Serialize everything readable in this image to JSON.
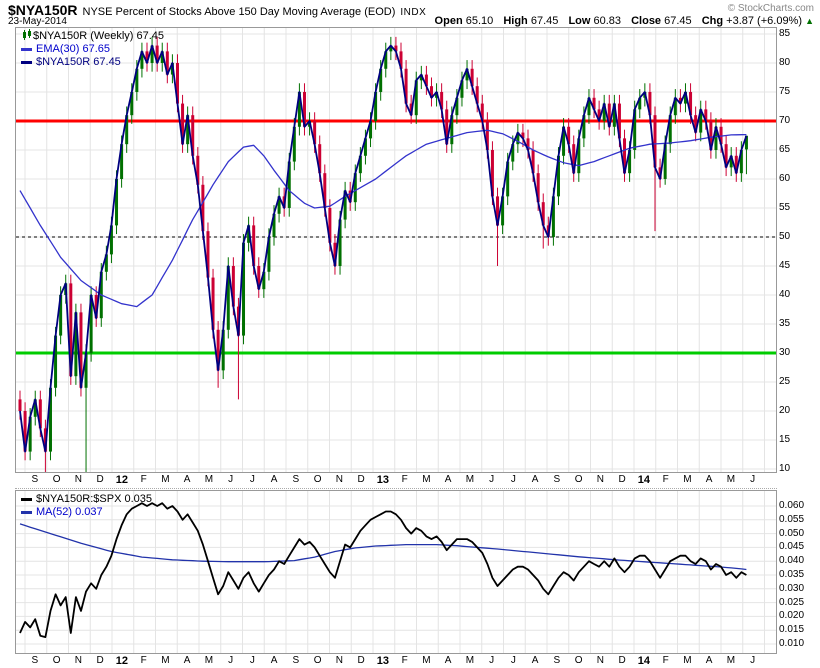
{
  "header": {
    "symbol": "$NYA150R",
    "description": "NYSE Percent of Stocks Above 150 Day Moving Average (EOD)",
    "exchange": "INDX",
    "copyright": "© StockCharts.com",
    "date": "23-May-2014",
    "quote_labels": {
      "open": "Open",
      "high": "High",
      "low": "Low",
      "close": "Close",
      "chg": "Chg"
    },
    "quote_values": {
      "open": "65.10",
      "high": "67.45",
      "low": "60.83",
      "close": "67.45",
      "chg": "+3.87 (+6.09%)",
      "arrow": "▲"
    }
  },
  "main_panel": {
    "legend": [
      {
        "text": "$NYA150R (Weekly) 67.45",
        "color": "#000000",
        "swatch": "candle-icon"
      },
      {
        "text": "EMA(30) 67.65",
        "color": "#0000cc",
        "swatch": "#3333cc"
      },
      {
        "text": "$NYA150R 67.45",
        "color": "#000080",
        "swatch": "#000080"
      }
    ]
  },
  "lower_panel": {
    "legend": [
      {
        "text": "$NYA150R:$SPX 0.035",
        "color": "#000000",
        "swatch": "#000000"
      },
      {
        "text": "MA(52) 0.037",
        "color": "#0000cc",
        "swatch": "#2233aa"
      }
    ]
  },
  "x_axis": {
    "labels": [
      "S",
      "O",
      "N",
      "D",
      "12",
      "F",
      "M",
      "A",
      "M",
      "J",
      "J",
      "A",
      "S",
      "O",
      "N",
      "D",
      "13",
      "F",
      "M",
      "A",
      "M",
      "J",
      "J",
      "A",
      "S",
      "O",
      "N",
      "D",
      "14",
      "F",
      "M",
      "A",
      "M",
      "J"
    ]
  },
  "colors": {
    "up": "#007000",
    "down": "#cc0033",
    "price_line": "#000080",
    "ema": "#3333cc",
    "overbought": "#ff0000",
    "oversold": "#00cc00",
    "midline": "#000000",
    "grid": "#e4e4e4",
    "ratio": "#000000",
    "ma52": "#2233aa"
  },
  "chart_data": [
    {
      "type": "candlestick",
      "title": "$NYA150R (Weekly)",
      "ylabel": "Percent of stocks above 150-day MA",
      "ylim": [
        9.48,
        86.03
      ],
      "y_ticks": [
        10,
        15,
        20,
        25,
        30,
        35,
        40,
        45,
        50,
        55,
        60,
        65,
        70,
        75,
        80,
        85
      ],
      "hlines": [
        {
          "value": 70,
          "style": "solid",
          "color": "#ff0000",
          "width": 3
        },
        {
          "value": 50,
          "style": "dashed",
          "color": "#000000",
          "width": 1
        },
        {
          "value": 30,
          "style": "solid",
          "color": "#00cc00",
          "width": 3
        }
      ],
      "weeks_start": "Sep-2011",
      "closes": [
        20,
        13,
        19,
        22,
        17,
        13,
        24,
        33,
        40,
        42,
        26,
        37,
        24,
        30,
        40,
        36,
        44,
        47,
        52,
        60,
        66,
        71,
        75,
        79,
        82,
        80,
        83,
        80,
        82,
        78,
        80,
        73,
        66,
        71,
        64,
        59,
        51,
        43,
        34,
        27,
        34,
        45,
        38,
        33,
        49,
        52,
        45,
        41,
        44,
        50,
        54,
        57,
        55,
        63,
        69,
        75,
        69,
        70,
        66,
        61,
        55,
        49,
        45,
        53,
        58,
        56,
        61,
        64,
        67,
        70,
        75,
        79,
        82,
        83,
        82,
        79,
        73,
        71,
        77,
        78,
        76,
        74,
        75,
        72,
        66,
        71,
        74,
        77,
        79,
        76,
        73,
        70,
        65,
        57,
        52,
        57,
        63,
        66,
        68,
        67,
        65,
        61,
        56,
        52,
        50,
        57,
        64,
        69,
        66,
        61,
        67,
        71,
        74,
        72,
        70,
        73,
        69,
        73,
        67,
        61,
        65,
        72,
        74,
        75,
        71,
        62,
        60,
        66,
        71,
        74,
        73,
        75,
        71,
        68,
        72,
        70,
        65,
        69,
        66,
        62,
        64,
        61,
        65,
        67.45
      ],
      "low_overrides": {
        "5": 9,
        "13": 8,
        "39": 24,
        "43": 22,
        "94": 45,
        "103": 48,
        "125": 51,
        "127": 59
      },
      "last_bar": {
        "open": 65.1,
        "high": 67.45,
        "low": 60.83,
        "close": 67.45
      },
      "series": [
        {
          "name": "EMA(30)",
          "last_value": 67.65,
          "points": [
            [
              0,
              58
            ],
            [
              4,
              52
            ],
            [
              8,
              46.5
            ],
            [
              12,
              42.5
            ],
            [
              16,
              40
            ],
            [
              20,
              38.5
            ],
            [
              23,
              38
            ],
            [
              26,
              40
            ],
            [
              30,
              46
            ],
            [
              34,
              53
            ],
            [
              38,
              59
            ],
            [
              41,
              63
            ],
            [
              44,
              65.5
            ],
            [
              46,
              65.8
            ],
            [
              48,
              64
            ],
            [
              50,
              61.5
            ],
            [
              53,
              58
            ],
            [
              56,
              55.8
            ],
            [
              58,
              55
            ],
            [
              61,
              55.3
            ],
            [
              64,
              57
            ],
            [
              67,
              58.5
            ],
            [
              70,
              60
            ],
            [
              73,
              62
            ],
            [
              76,
              64
            ],
            [
              80,
              66
            ],
            [
              84,
              67
            ],
            [
              88,
              68
            ],
            [
              92,
              68.4
            ],
            [
              95,
              67.8
            ],
            [
              98,
              66.5
            ],
            [
              101,
              65
            ],
            [
              104,
              63.8
            ],
            [
              107,
              62.8
            ],
            [
              110,
              62.3
            ],
            [
              113,
              63
            ],
            [
              116,
              64
            ],
            [
              120,
              65.3
            ],
            [
              124,
              66
            ],
            [
              128,
              66.2
            ],
            [
              132,
              66.6
            ],
            [
              136,
              67.2
            ],
            [
              140,
              67.6
            ],
            [
              143,
              67.65
            ]
          ]
        }
      ]
    },
    {
      "type": "line",
      "title": "$NYA150R:$SPX",
      "ylim": [
        0.00674,
        0.06543
      ],
      "y_ticks": [
        0.06,
        0.055,
        0.05,
        0.045,
        0.04,
        0.035,
        0.03,
        0.025,
        0.02,
        0.015,
        0.01
      ],
      "series": [
        {
          "name": "$NYA150R:$SPX",
          "last_value": 0.035,
          "values": [
            0.014,
            0.018,
            0.016,
            0.019,
            0.013,
            0.0125,
            0.022,
            0.028,
            0.024,
            0.027,
            0.014,
            0.027,
            0.022,
            0.029,
            0.032,
            0.03,
            0.035,
            0.038,
            0.042,
            0.048,
            0.053,
            0.057,
            0.059,
            0.06,
            0.061,
            0.06,
            0.061,
            0.06,
            0.061,
            0.059,
            0.06,
            0.058,
            0.055,
            0.057,
            0.054,
            0.051,
            0.046,
            0.04,
            0.034,
            0.028,
            0.031,
            0.036,
            0.033,
            0.03,
            0.034,
            0.036,
            0.032,
            0.029,
            0.032,
            0.035,
            0.037,
            0.04,
            0.039,
            0.042,
            0.045,
            0.048,
            0.046,
            0.047,
            0.045,
            0.042,
            0.039,
            0.036,
            0.034,
            0.04,
            0.046,
            0.045,
            0.048,
            0.051,
            0.053,
            0.055,
            0.056,
            0.057,
            0.058,
            0.058,
            0.057,
            0.055,
            0.052,
            0.05,
            0.052,
            0.051,
            0.049,
            0.048,
            0.049,
            0.047,
            0.044,
            0.046,
            0.048,
            0.048,
            0.048,
            0.047,
            0.045,
            0.043,
            0.039,
            0.034,
            0.031,
            0.033,
            0.035,
            0.037,
            0.038,
            0.038,
            0.037,
            0.035,
            0.033,
            0.03,
            0.028,
            0.031,
            0.034,
            0.036,
            0.035,
            0.033,
            0.036,
            0.038,
            0.04,
            0.039,
            0.038,
            0.04,
            0.038,
            0.041,
            0.038,
            0.036,
            0.038,
            0.041,
            0.042,
            0.042,
            0.04,
            0.037,
            0.034,
            0.037,
            0.04,
            0.041,
            0.042,
            0.042,
            0.04,
            0.039,
            0.041,
            0.04,
            0.037,
            0.039,
            0.038,
            0.035,
            0.036,
            0.034,
            0.036,
            0.035
          ]
        },
        {
          "name": "MA(52)",
          "last_value": 0.037,
          "points": [
            [
              0,
              0.0535
            ],
            [
              6,
              0.05
            ],
            [
              12,
              0.0465
            ],
            [
              18,
              0.0435
            ],
            [
              24,
              0.0415
            ],
            [
              30,
              0.0405
            ],
            [
              36,
              0.04
            ],
            [
              42,
              0.0398
            ],
            [
              48,
              0.0398
            ],
            [
              54,
              0.0402
            ],
            [
              58,
              0.0415
            ],
            [
              62,
              0.0435
            ],
            [
              66,
              0.0448
            ],
            [
              70,
              0.0455
            ],
            [
              76,
              0.046
            ],
            [
              82,
              0.046
            ],
            [
              86,
              0.0456
            ],
            [
              90,
              0.045
            ],
            [
              94,
              0.0444
            ],
            [
              98,
              0.0437
            ],
            [
              102,
              0.043
            ],
            [
              106,
              0.0423
            ],
            [
              110,
              0.0416
            ],
            [
              114,
              0.041
            ],
            [
              118,
              0.0404
            ],
            [
              122,
              0.0399
            ],
            [
              126,
              0.0394
            ],
            [
              130,
              0.0389
            ],
            [
              134,
              0.0384
            ],
            [
              138,
              0.0379
            ],
            [
              141,
              0.0374
            ],
            [
              143,
              0.037
            ]
          ]
        }
      ]
    }
  ]
}
